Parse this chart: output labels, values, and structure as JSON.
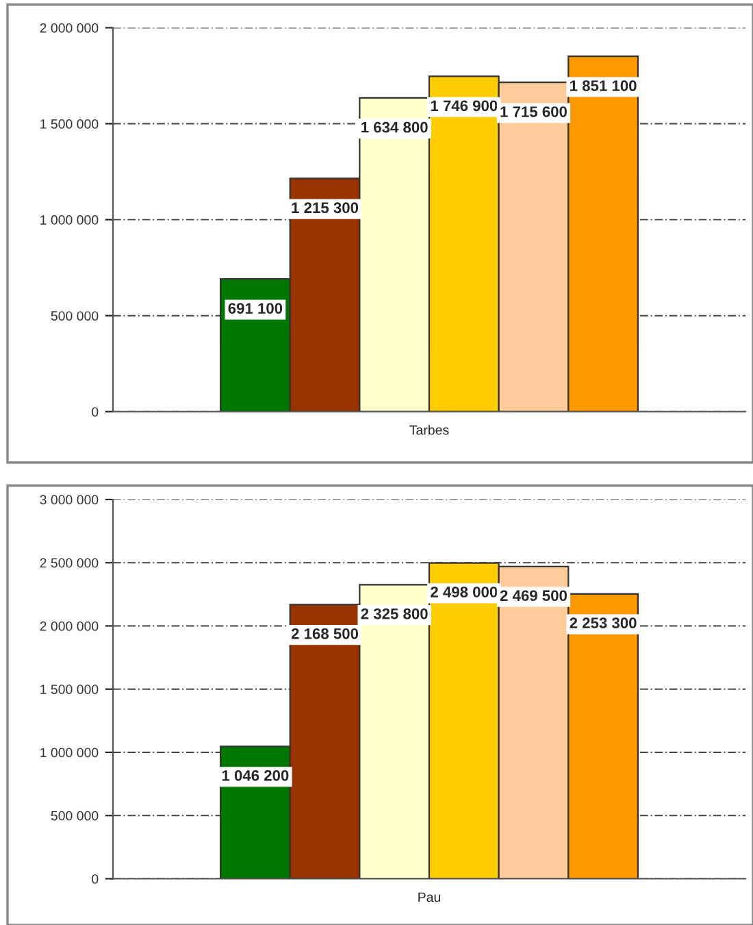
{
  "chart_data": [
    {
      "type": "bar",
      "categories": [
        "Tarbes"
      ],
      "ylim": [
        0,
        2000000
      ],
      "yticks": [
        {
          "value": 0,
          "label": "0"
        },
        {
          "value": 500000,
          "label": "500 000"
        },
        {
          "value": 1000000,
          "label": "1 000 000"
        },
        {
          "value": 1500000,
          "label": "1 500 000"
        },
        {
          "value": 2000000,
          "label": "2 000 000"
        }
      ],
      "grid": "y",
      "legend": false,
      "series": [
        {
          "color": "#007800",
          "values": [
            691100
          ],
          "value_labels": [
            "691 100"
          ]
        },
        {
          "color": "#993300",
          "values": [
            1215300
          ],
          "value_labels": [
            "1 215 300"
          ]
        },
        {
          "color": "#ffffcc",
          "values": [
            1634800
          ],
          "value_labels": [
            "1 634 800"
          ]
        },
        {
          "color": "#ffcc00",
          "values": [
            1746900
          ],
          "value_labels": [
            "1 746 900"
          ]
        },
        {
          "color": "#ffcc99",
          "values": [
            1715600
          ],
          "value_labels": [
            "1 715 600"
          ]
        },
        {
          "color": "#ff9900",
          "values": [
            1851100
          ],
          "value_labels": [
            "1 851 100"
          ]
        }
      ]
    },
    {
      "type": "bar",
      "categories": [
        "Pau"
      ],
      "ylim": [
        0,
        3000000
      ],
      "yticks": [
        {
          "value": 0,
          "label": "0"
        },
        {
          "value": 500000,
          "label": "500 000"
        },
        {
          "value": 1000000,
          "label": "1 000 000"
        },
        {
          "value": 1500000,
          "label": "1 500 000"
        },
        {
          "value": 2000000,
          "label": "2 000 000"
        },
        {
          "value": 2500000,
          "label": "2 500 000"
        },
        {
          "value": 3000000,
          "label": "3 000 000"
        }
      ],
      "grid": "y",
      "legend": false,
      "series": [
        {
          "color": "#007800",
          "values": [
            1046200
          ],
          "value_labels": [
            "1 046 200"
          ]
        },
        {
          "color": "#993300",
          "values": [
            2168500
          ],
          "value_labels": [
            "2 168 500"
          ]
        },
        {
          "color": "#ffffcc",
          "values": [
            2325800
          ],
          "value_labels": [
            "2 325 800"
          ]
        },
        {
          "color": "#ffcc00",
          "values": [
            2498000
          ],
          "value_labels": [
            "2 498 000"
          ]
        },
        {
          "color": "#ffcc99",
          "values": [
            2469500
          ],
          "value_labels": [
            "2 469 500"
          ]
        },
        {
          "color": "#ff9900",
          "values": [
            2253300
          ],
          "value_labels": [
            "2 253 300"
          ]
        }
      ]
    }
  ]
}
